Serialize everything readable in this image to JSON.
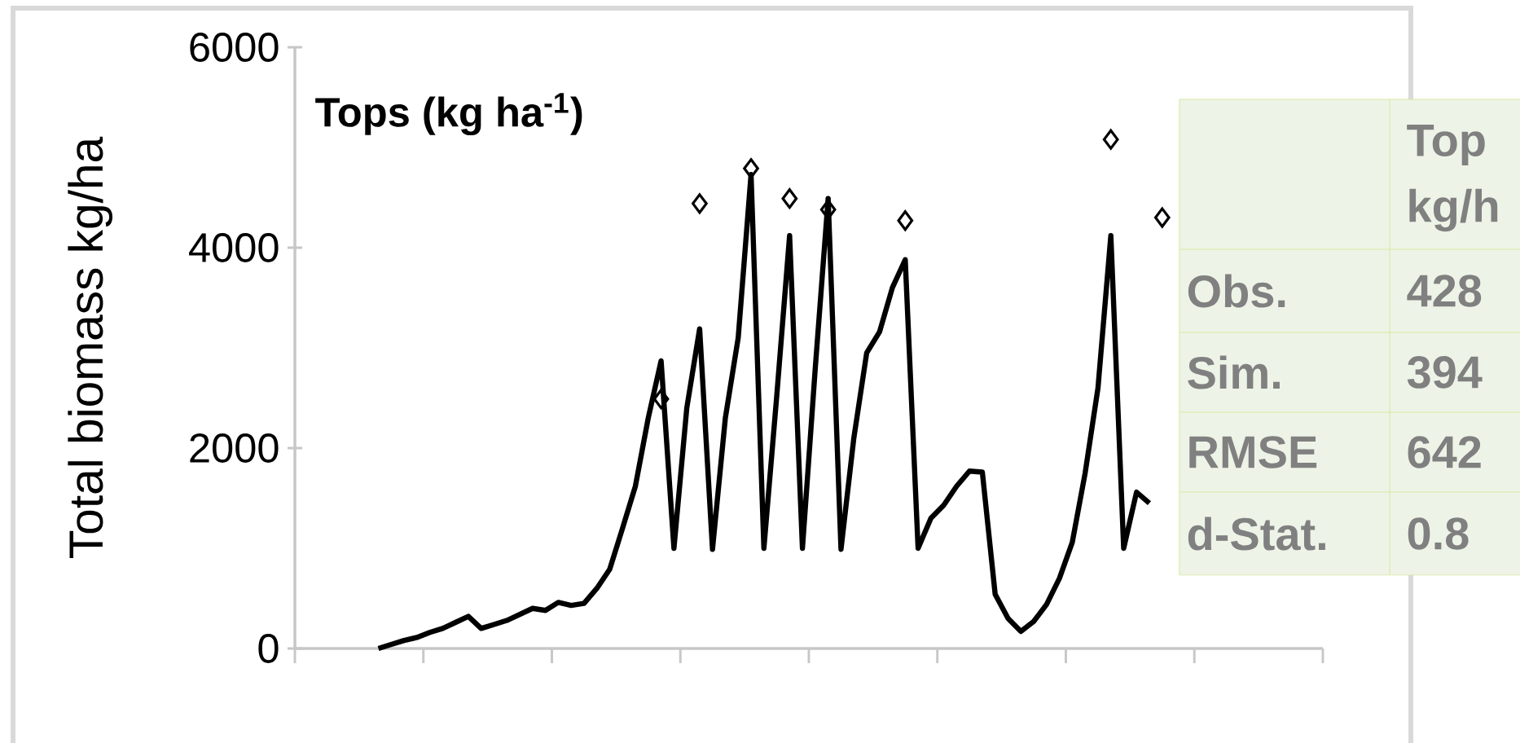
{
  "chart_data": {
    "type": "line",
    "title": "Tops (kg ha$^{-1}$)",
    "ylabel": "Total biomass kg/ha",
    "categories": [
      null,
      null,
      null,
      null,
      null,
      null,
      null,
      null,
      null,
      null,
      null,
      null,
      null,
      null,
      null,
      null,
      null,
      null,
      null,
      null,
      null,
      null,
      null,
      null,
      null,
      null,
      null,
      null,
      null,
      null,
      null,
      null,
      null,
      null,
      null,
      null,
      null,
      null,
      null,
      null,
      null,
      null,
      null,
      null,
      null,
      null,
      null,
      null,
      null,
      null,
      null,
      null,
      null,
      null,
      null,
      null,
      null,
      null,
      null,
      null,
      null,
      null,
      null,
      null,
      null,
      null,
      null,
      null,
      null,
      null,
      null,
      null,
      null,
      null,
      null,
      null,
      null,
      null,
      null,
      null
    ],
    "ylim": [
      0,
      6000
    ],
    "yticks": [
      0,
      2000,
      4000,
      6000
    ],
    "grid": false,
    "series": [
      {
        "color": "#000000",
        "values": [
          null,
          null,
          null,
          null,
          null,
          null,
          0,
          40,
          80,
          110,
          160,
          200,
          260,
          320,
          200,
          240,
          280,
          340,
          400,
          380,
          460,
          430,
          450,
          600,
          790,
          1200,
          1620,
          2300,
          2870,
          1000,
          2400,
          3190,
          990,
          2300,
          3100,
          4730,
          1000,
          2520,
          4120,
          1000,
          2800,
          4490,
          990,
          2100,
          2950,
          3160,
          3600,
          3880,
          1000,
          1300,
          1430,
          1620,
          1770,
          1760,
          540,
          300,
          170,
          270,
          440,
          700,
          1060,
          1750,
          2600,
          4120,
          1000,
          1560,
          1450,
          null,
          null,
          null,
          null,
          null,
          null,
          null,
          null,
          null,
          null,
          null,
          null,
          null
        ]
      },
      {
        "type": "scatter",
        "color": "#000000",
        "marker": "diamond",
        "values": [
          null,
          null,
          null,
          null,
          null,
          null,
          null,
          null,
          null,
          null,
          null,
          null,
          null,
          null,
          null,
          null,
          null,
          null,
          null,
          null,
          null,
          null,
          null,
          null,
          null,
          null,
          null,
          null,
          2490,
          null,
          null,
          4440,
          null,
          null,
          null,
          4790,
          null,
          null,
          4490,
          null,
          null,
          4380,
          null,
          null,
          null,
          null,
          null,
          4270,
          null,
          null,
          null,
          null,
          null,
          null,
          null,
          null,
          null,
          null,
          null,
          null,
          null,
          null,
          null,
          5080,
          null,
          null,
          null,
          4300,
          null,
          null,
          null,
          null,
          null,
          null,
          null,
          null,
          null,
          null,
          null,
          null
        ]
      }
    ],
    "annotations": [
      "Top",
      "kg/h",
      "Obs.",
      "428",
      "Sim.",
      "394",
      "RMSE",
      "642",
      "d-Stat.",
      "0.8"
    ]
  }
}
